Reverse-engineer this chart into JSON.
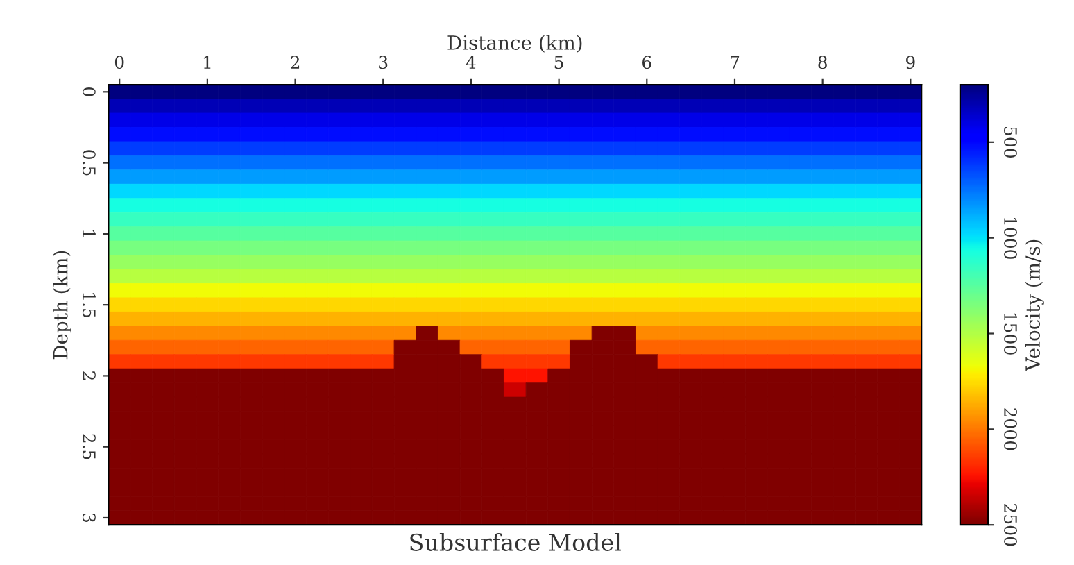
{
  "chart_data": {
    "type": "heatmap",
    "title": "Subsurface Model",
    "xlabel": "Distance (km)",
    "ylabel": "Depth (km)",
    "clabel": "Velocity (m/s)",
    "clim": [
      200,
      2500
    ],
    "cticks": [
      500,
      1000,
      1500,
      2000,
      2500
    ],
    "categories": [
      "0",
      null,
      null,
      null,
      "1",
      null,
      null,
      null,
      "2",
      null,
      null,
      null,
      "3",
      null,
      null,
      null,
      "4",
      null,
      null,
      null,
      "5",
      null,
      null,
      null,
      "6",
      null,
      null,
      null,
      "7",
      null,
      null,
      null,
      "8",
      null,
      null,
      null,
      "9"
    ],
    "y_categories": [
      "0",
      null,
      null,
      null,
      null,
      "0.5",
      null,
      null,
      null,
      null,
      "1",
      null,
      null,
      null,
      null,
      "1.5",
      null,
      null,
      null,
      null,
      "2",
      null,
      null,
      null,
      null,
      "2.5",
      null,
      null,
      null,
      null,
      "3"
    ],
    "cells": [
      [
        200,
        200,
        200,
        200,
        200,
        200,
        200,
        200,
        200,
        200,
        200,
        200,
        200,
        200,
        200,
        200,
        200,
        200,
        200,
        200,
        200,
        200,
        200,
        200,
        200,
        200,
        200,
        200,
        200,
        200,
        200,
        200,
        200,
        200,
        200,
        200,
        200
      ],
      [
        310,
        310,
        310,
        310,
        310,
        310,
        310,
        310,
        310,
        310,
        310,
        310,
        310,
        310,
        310,
        310,
        310,
        310,
        310,
        310,
        310,
        310,
        310,
        310,
        310,
        310,
        310,
        310,
        310,
        310,
        310,
        310,
        310,
        310,
        310,
        310,
        310
      ],
      [
        410,
        410,
        410,
        410,
        410,
        410,
        410,
        410,
        410,
        410,
        410,
        410,
        410,
        410,
        410,
        410,
        410,
        410,
        410,
        410,
        410,
        410,
        410,
        410,
        410,
        410,
        410,
        410,
        410,
        410,
        410,
        410,
        410,
        410,
        410,
        410,
        410
      ],
      [
        520,
        520,
        520,
        520,
        520,
        520,
        520,
        520,
        520,
        520,
        520,
        520,
        520,
        520,
        520,
        520,
        520,
        520,
        520,
        520,
        520,
        520,
        520,
        520,
        520,
        520,
        520,
        520,
        520,
        520,
        520,
        520,
        520,
        520,
        520,
        520,
        520
      ],
      [
        630,
        630,
        630,
        630,
        630,
        630,
        630,
        630,
        630,
        630,
        630,
        630,
        630,
        630,
        630,
        630,
        630,
        630,
        630,
        630,
        630,
        630,
        630,
        630,
        630,
        630,
        630,
        630,
        630,
        630,
        630,
        630,
        630,
        630,
        630,
        630,
        630
      ],
      [
        740,
        740,
        740,
        740,
        740,
        740,
        740,
        740,
        740,
        740,
        740,
        740,
        740,
        740,
        740,
        740,
        740,
        740,
        740,
        740,
        740,
        740,
        740,
        740,
        740,
        740,
        740,
        740,
        740,
        740,
        740,
        740,
        740,
        740,
        740,
        740,
        740
      ],
      [
        840,
        840,
        840,
        840,
        840,
        840,
        840,
        840,
        840,
        840,
        840,
        840,
        840,
        840,
        840,
        840,
        840,
        840,
        840,
        840,
        840,
        840,
        840,
        840,
        840,
        840,
        840,
        840,
        840,
        840,
        840,
        840,
        840,
        840,
        840,
        840,
        840
      ],
      [
        980,
        980,
        980,
        980,
        980,
        980,
        980,
        980,
        980,
        980,
        980,
        980,
        980,
        980,
        980,
        980,
        980,
        980,
        980,
        980,
        980,
        980,
        980,
        980,
        980,
        980,
        980,
        980,
        980,
        980,
        980,
        980,
        980,
        980,
        980,
        980,
        980
      ],
      [
        1070,
        1070,
        1070,
        1070,
        1070,
        1070,
        1070,
        1070,
        1070,
        1070,
        1070,
        1070,
        1070,
        1070,
        1070,
        1070,
        1070,
        1070,
        1070,
        1070,
        1070,
        1070,
        1070,
        1070,
        1070,
        1070,
        1070,
        1070,
        1070,
        1070,
        1070,
        1070,
        1070,
        1070,
        1070,
        1070,
        1070
      ],
      [
        1160,
        1160,
        1160,
        1160,
        1160,
        1160,
        1160,
        1160,
        1160,
        1160,
        1160,
        1160,
        1160,
        1160,
        1160,
        1160,
        1160,
        1160,
        1160,
        1160,
        1160,
        1160,
        1160,
        1160,
        1160,
        1160,
        1160,
        1160,
        1160,
        1160,
        1160,
        1160,
        1160,
        1160,
        1160,
        1160,
        1160
      ],
      [
        1250,
        1250,
        1250,
        1250,
        1250,
        1250,
        1250,
        1250,
        1250,
        1250,
        1250,
        1250,
        1250,
        1250,
        1250,
        1250,
        1250,
        1250,
        1250,
        1250,
        1250,
        1250,
        1250,
        1250,
        1250,
        1250,
        1250,
        1250,
        1250,
        1250,
        1250,
        1250,
        1250,
        1250,
        1250,
        1250,
        1250
      ],
      [
        1340,
        1340,
        1340,
        1340,
        1340,
        1340,
        1340,
        1340,
        1340,
        1340,
        1340,
        1340,
        1340,
        1340,
        1340,
        1340,
        1340,
        1340,
        1340,
        1340,
        1340,
        1340,
        1340,
        1340,
        1340,
        1340,
        1340,
        1340,
        1340,
        1340,
        1340,
        1340,
        1340,
        1340,
        1340,
        1340,
        1340
      ],
      [
        1430,
        1430,
        1430,
        1430,
        1430,
        1430,
        1430,
        1430,
        1430,
        1430,
        1430,
        1430,
        1430,
        1430,
        1430,
        1430,
        1430,
        1430,
        1430,
        1430,
        1430,
        1430,
        1430,
        1430,
        1430,
        1430,
        1430,
        1430,
        1430,
        1430,
        1430,
        1430,
        1430,
        1430,
        1430,
        1430,
        1430
      ],
      [
        1520,
        1520,
        1520,
        1520,
        1520,
        1520,
        1520,
        1520,
        1520,
        1520,
        1520,
        1520,
        1520,
        1520,
        1520,
        1520,
        1520,
        1520,
        1520,
        1520,
        1520,
        1520,
        1520,
        1520,
        1520,
        1520,
        1520,
        1520,
        1520,
        1520,
        1520,
        1520,
        1520,
        1520,
        1520,
        1520,
        1520
      ],
      [
        1680,
        1680,
        1680,
        1680,
        1680,
        1680,
        1680,
        1680,
        1680,
        1680,
        1680,
        1680,
        1680,
        1680,
        1680,
        1680,
        1680,
        1680,
        1680,
        1680,
        1680,
        1680,
        1680,
        1680,
        1680,
        1680,
        1680,
        1680,
        1680,
        1680,
        1680,
        1680,
        1680,
        1680,
        1680,
        1680,
        1680
      ],
      [
        1770,
        1770,
        1770,
        1770,
        1770,
        1770,
        1770,
        1770,
        1770,
        1770,
        1770,
        1770,
        1770,
        1770,
        1770,
        1770,
        1770,
        1770,
        1770,
        1770,
        1770,
        1770,
        1770,
        1770,
        1770,
        1770,
        1770,
        1770,
        1770,
        1770,
        1770,
        1770,
        1770,
        1770,
        1770,
        1770,
        1770
      ],
      [
        1860,
        1860,
        1860,
        1860,
        1860,
        1860,
        1860,
        1860,
        1860,
        1860,
        1860,
        1860,
        1860,
        1860,
        1860,
        1860,
        1860,
        1860,
        1860,
        1860,
        1860,
        1860,
        1860,
        1860,
        1860,
        1860,
        1860,
        1860,
        1860,
        1860,
        1860,
        1860,
        1860,
        1860,
        1860,
        1860,
        1860
      ],
      [
        1960,
        1960,
        1960,
        1960,
        1960,
        1960,
        1960,
        1960,
        1960,
        1960,
        1960,
        1960,
        1960,
        1960,
        2500,
        1960,
        1960,
        1960,
        1960,
        1960,
        1960,
        1960,
        2500,
        2500,
        1960,
        1960,
        1960,
        1960,
        1960,
        1960,
        1960,
        1960,
        1960,
        1960,
        1960,
        1960,
        1960
      ],
      [
        2050,
        2050,
        2050,
        2050,
        2050,
        2050,
        2050,
        2050,
        2050,
        2050,
        2050,
        2050,
        2050,
        2500,
        2500,
        2500,
        2050,
        2050,
        2050,
        2050,
        2050,
        2500,
        2500,
        2500,
        2050,
        2050,
        2050,
        2050,
        2050,
        2050,
        2050,
        2050,
        2050,
        2050,
        2050,
        2050,
        2050
      ],
      [
        2150,
        2150,
        2150,
        2150,
        2150,
        2150,
        2150,
        2150,
        2150,
        2150,
        2150,
        2150,
        2150,
        2500,
        2500,
        2500,
        2500,
        2150,
        2150,
        2150,
        2150,
        2500,
        2500,
        2500,
        2500,
        2150,
        2150,
        2150,
        2150,
        2150,
        2150,
        2150,
        2150,
        2150,
        2150,
        2150,
        2150
      ],
      [
        2500,
        2500,
        2500,
        2500,
        2500,
        2500,
        2500,
        2500,
        2500,
        2500,
        2500,
        2500,
        2500,
        2500,
        2500,
        2500,
        2500,
        2500,
        2240,
        2240,
        2500,
        2500,
        2500,
        2500,
        2500,
        2500,
        2500,
        2500,
        2500,
        2500,
        2500,
        2500,
        2500,
        2500,
        2500,
        2500,
        2500
      ],
      [
        2500,
        2500,
        2500,
        2500,
        2500,
        2500,
        2500,
        2500,
        2500,
        2500,
        2500,
        2500,
        2500,
        2500,
        2500,
        2500,
        2500,
        2500,
        2340,
        2500,
        2500,
        2500,
        2500,
        2500,
        2500,
        2500,
        2500,
        2500,
        2500,
        2500,
        2500,
        2500,
        2500,
        2500,
        2500,
        2500,
        2500
      ],
      [
        2500,
        2500,
        2500,
        2500,
        2500,
        2500,
        2500,
        2500,
        2500,
        2500,
        2500,
        2500,
        2500,
        2500,
        2500,
        2500,
        2500,
        2500,
        2500,
        2500,
        2500,
        2500,
        2500,
        2500,
        2500,
        2500,
        2500,
        2500,
        2500,
        2500,
        2500,
        2500,
        2500,
        2500,
        2500,
        2500,
        2500
      ],
      [
        2500,
        2500,
        2500,
        2500,
        2500,
        2500,
        2500,
        2500,
        2500,
        2500,
        2500,
        2500,
        2500,
        2500,
        2500,
        2500,
        2500,
        2500,
        2500,
        2500,
        2500,
        2500,
        2500,
        2500,
        2500,
        2500,
        2500,
        2500,
        2500,
        2500,
        2500,
        2500,
        2500,
        2500,
        2500,
        2500,
        2500
      ],
      [
        2500,
        2500,
        2500,
        2500,
        2500,
        2500,
        2500,
        2500,
        2500,
        2500,
        2500,
        2500,
        2500,
        2500,
        2500,
        2500,
        2500,
        2500,
        2500,
        2500,
        2500,
        2500,
        2500,
        2500,
        2500,
        2500,
        2500,
        2500,
        2500,
        2500,
        2500,
        2500,
        2500,
        2500,
        2500,
        2500,
        2500
      ],
      [
        2500,
        2500,
        2500,
        2500,
        2500,
        2500,
        2500,
        2500,
        2500,
        2500,
        2500,
        2500,
        2500,
        2500,
        2500,
        2500,
        2500,
        2500,
        2500,
        2500,
        2500,
        2500,
        2500,
        2500,
        2500,
        2500,
        2500,
        2500,
        2500,
        2500,
        2500,
        2500,
        2500,
        2500,
        2500,
        2500,
        2500
      ],
      [
        2500,
        2500,
        2500,
        2500,
        2500,
        2500,
        2500,
        2500,
        2500,
        2500,
        2500,
        2500,
        2500,
        2500,
        2500,
        2500,
        2500,
        2500,
        2500,
        2500,
        2500,
        2500,
        2500,
        2500,
        2500,
        2500,
        2500,
        2500,
        2500,
        2500,
        2500,
        2500,
        2500,
        2500,
        2500,
        2500,
        2500
      ],
      [
        2500,
        2500,
        2500,
        2500,
        2500,
        2500,
        2500,
        2500,
        2500,
        2500,
        2500,
        2500,
        2500,
        2500,
        2500,
        2500,
        2500,
        2500,
        2500,
        2500,
        2500,
        2500,
        2500,
        2500,
        2500,
        2500,
        2500,
        2500,
        2500,
        2500,
        2500,
        2500,
        2500,
        2500,
        2500,
        2500,
        2500
      ],
      [
        2500,
        2500,
        2500,
        2500,
        2500,
        2500,
        2500,
        2500,
        2500,
        2500,
        2500,
        2500,
        2500,
        2500,
        2500,
        2500,
        2500,
        2500,
        2500,
        2500,
        2500,
        2500,
        2500,
        2500,
        2500,
        2500,
        2500,
        2500,
        2500,
        2500,
        2500,
        2500,
        2500,
        2500,
        2500,
        2500,
        2500
      ],
      [
        2500,
        2500,
        2500,
        2500,
        2500,
        2500,
        2500,
        2500,
        2500,
        2500,
        2500,
        2500,
        2500,
        2500,
        2500,
        2500,
        2500,
        2500,
        2500,
        2500,
        2500,
        2500,
        2500,
        2500,
        2500,
        2500,
        2500,
        2500,
        2500,
        2500,
        2500,
        2500,
        2500,
        2500,
        2500,
        2500,
        2500
      ],
      [
        2500,
        2500,
        2500,
        2500,
        2500,
        2500,
        2500,
        2500,
        2500,
        2500,
        2500,
        2500,
        2500,
        2500,
        2500,
        2500,
        2500,
        2500,
        2500,
        2500,
        2500,
        2500,
        2500,
        2500,
        2500,
        2500,
        2500,
        2500,
        2500,
        2500,
        2500,
        2500,
        2500,
        2500,
        2500,
        2500,
        2500
      ]
    ]
  }
}
